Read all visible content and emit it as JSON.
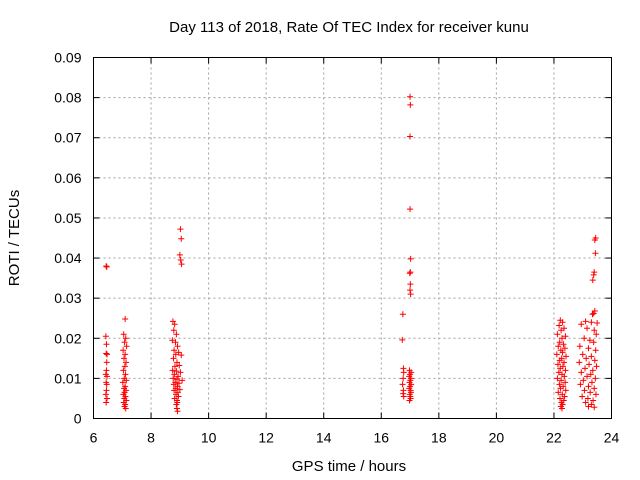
{
  "chart_data": {
    "type": "scatter",
    "title": "Day 113 of 2018, Rate Of TEC Index for receiver kunu",
    "xlabel": "GPS time / hours",
    "ylabel": "ROTI / TECUs",
    "xlim": [
      6,
      24
    ],
    "ylim": [
      0,
      0.09
    ],
    "grid": true,
    "marker": "plus",
    "color": "#ff0000",
    "x_ticks": [
      6,
      8,
      10,
      12,
      14,
      16,
      18,
      20,
      22,
      24
    ],
    "x_tick_labels": [
      "6",
      "8",
      "10",
      "12",
      "14",
      "16",
      "18",
      "20",
      "22",
      "24"
    ],
    "y_ticks": [
      0,
      0.01,
      0.02,
      0.03,
      0.04,
      0.05,
      0.06,
      0.07,
      0.08,
      0.09
    ],
    "y_tick_labels": [
      "0",
      "0.01",
      "0.02",
      "0.03",
      "0.04",
      "0.05",
      "0.06",
      "0.07",
      "0.08",
      "0.09"
    ],
    "series": [
      {
        "name": "ROTI",
        "points": [
          [
            6.44,
            0.038
          ],
          [
            6.46,
            0.0378
          ],
          [
            6.43,
            0.0205
          ],
          [
            6.45,
            0.0185
          ],
          [
            6.47,
            0.016
          ],
          [
            6.44,
            0.0162
          ],
          [
            6.46,
            0.014
          ],
          [
            6.45,
            0.012
          ],
          [
            6.43,
            0.011
          ],
          [
            6.47,
            0.0105
          ],
          [
            6.44,
            0.009
          ],
          [
            6.46,
            0.0085
          ],
          [
            6.45,
            0.007
          ],
          [
            6.43,
            0.006
          ],
          [
            6.47,
            0.005
          ],
          [
            6.44,
            0.004
          ],
          [
            7.1,
            0.0248
          ],
          [
            7.05,
            0.021
          ],
          [
            7.12,
            0.02
          ],
          [
            7.08,
            0.019
          ],
          [
            7.15,
            0.018
          ],
          [
            7.03,
            0.017
          ],
          [
            7.1,
            0.016
          ],
          [
            7.06,
            0.015
          ],
          [
            7.13,
            0.014
          ],
          [
            7.09,
            0.013
          ],
          [
            7.04,
            0.012
          ],
          [
            7.11,
            0.011
          ],
          [
            7.07,
            0.01
          ],
          [
            7.14,
            0.0095
          ],
          [
            7.02,
            0.009
          ],
          [
            7.1,
            0.008
          ],
          [
            7.06,
            0.0075
          ],
          [
            7.13,
            0.007
          ],
          [
            7.08,
            0.0065
          ],
          [
            7.04,
            0.006
          ],
          [
            7.11,
            0.0055
          ],
          [
            7.07,
            0.005
          ],
          [
            7.14,
            0.0045
          ],
          [
            7.05,
            0.004
          ],
          [
            7.1,
            0.0035
          ],
          [
            7.08,
            0.003
          ],
          [
            7.12,
            0.0025
          ],
          [
            9.02,
            0.0472
          ],
          [
            9.05,
            0.0448
          ],
          [
            9.0,
            0.0408
          ],
          [
            9.03,
            0.0395
          ],
          [
            9.06,
            0.0385
          ],
          [
            8.76,
            0.0242
          ],
          [
            8.82,
            0.0235
          ],
          [
            8.79,
            0.022
          ],
          [
            8.88,
            0.021
          ],
          [
            8.74,
            0.0195
          ],
          [
            8.85,
            0.019
          ],
          [
            8.92,
            0.018
          ],
          [
            8.8,
            0.017
          ],
          [
            8.96,
            0.0165
          ],
          [
            8.86,
            0.016
          ],
          [
            8.78,
            0.015
          ],
          [
            9.05,
            0.0158
          ],
          [
            8.9,
            0.014
          ],
          [
            8.83,
            0.013
          ],
          [
            8.98,
            0.0132
          ],
          [
            8.75,
            0.012
          ],
          [
            8.88,
            0.0118
          ],
          [
            9.02,
            0.0115
          ],
          [
            8.81,
            0.011
          ],
          [
            8.94,
            0.0105
          ],
          [
            8.77,
            0.01
          ],
          [
            8.9,
            0.0098
          ],
          [
            9.08,
            0.0095
          ],
          [
            8.84,
            0.009
          ],
          [
            8.97,
            0.0088
          ],
          [
            8.79,
            0.0085
          ],
          [
            8.92,
            0.008
          ],
          [
            8.86,
            0.0075
          ],
          [
            9.0,
            0.0072
          ],
          [
            8.8,
            0.007
          ],
          [
            8.93,
            0.0065
          ],
          [
            8.87,
            0.006
          ],
          [
            8.95,
            0.0055
          ],
          [
            8.82,
            0.005
          ],
          [
            8.9,
            0.0045
          ],
          [
            8.91,
            0.004
          ],
          [
            8.88,
            0.0035
          ],
          [
            8.9,
            0.0025
          ],
          [
            8.92,
            0.0018
          ],
          [
            17.0,
            0.0802
          ],
          [
            17.01,
            0.0782
          ],
          [
            17.0,
            0.0703
          ],
          [
            17.0,
            0.0522
          ],
          [
            17.02,
            0.0398
          ],
          [
            17.01,
            0.0365
          ],
          [
            16.99,
            0.0362
          ],
          [
            17.01,
            0.0335
          ],
          [
            17.0,
            0.032
          ],
          [
            17.02,
            0.031
          ],
          [
            16.75,
            0.026
          ],
          [
            16.73,
            0.0196
          ],
          [
            16.77,
            0.0125
          ],
          [
            16.78,
            0.0115
          ],
          [
            16.76,
            0.01
          ],
          [
            16.74,
            0.0085
          ],
          [
            16.77,
            0.007
          ],
          [
            16.76,
            0.0062
          ],
          [
            16.78,
            0.0055
          ],
          [
            16.98,
            0.012
          ],
          [
            17.04,
            0.0115
          ],
          [
            17.0,
            0.011
          ],
          [
            16.97,
            0.0105
          ],
          [
            17.03,
            0.01
          ],
          [
            17.01,
            0.0095
          ],
          [
            16.98,
            0.009
          ],
          [
            17.04,
            0.0085
          ],
          [
            17.0,
            0.008
          ],
          [
            16.97,
            0.0075
          ],
          [
            17.02,
            0.007
          ],
          [
            17.03,
            0.0065
          ],
          [
            16.99,
            0.006
          ],
          [
            17.01,
            0.0055
          ],
          [
            17.02,
            0.005
          ],
          [
            16.98,
            0.0045
          ],
          [
            22.22,
            0.0245
          ],
          [
            22.3,
            0.024
          ],
          [
            22.18,
            0.0232
          ],
          [
            22.35,
            0.0225
          ],
          [
            22.25,
            0.022
          ],
          [
            22.12,
            0.021
          ],
          [
            22.4,
            0.0205
          ],
          [
            22.28,
            0.02
          ],
          [
            22.2,
            0.019
          ],
          [
            22.33,
            0.0185
          ],
          [
            22.15,
            0.018
          ],
          [
            22.38,
            0.0175
          ],
          [
            22.24,
            0.017
          ],
          [
            22.3,
            0.0165
          ],
          [
            22.1,
            0.016
          ],
          [
            22.42,
            0.0155
          ],
          [
            22.27,
            0.015
          ],
          [
            22.2,
            0.0145
          ],
          [
            22.35,
            0.014
          ],
          [
            22.14,
            0.0135
          ],
          [
            22.31,
            0.013
          ],
          [
            22.22,
            0.0125
          ],
          [
            22.4,
            0.012
          ],
          [
            22.17,
            0.0115
          ],
          [
            22.28,
            0.011
          ],
          [
            22.36,
            0.0105
          ],
          [
            22.12,
            0.01
          ],
          [
            22.25,
            0.0095
          ],
          [
            22.39,
            0.009
          ],
          [
            22.19,
            0.0085
          ],
          [
            22.32,
            0.008
          ],
          [
            22.23,
            0.0075
          ],
          [
            22.41,
            0.007
          ],
          [
            22.15,
            0.0065
          ],
          [
            22.29,
            0.006
          ],
          [
            22.37,
            0.0055
          ],
          [
            22.21,
            0.005
          ],
          [
            22.34,
            0.0045
          ],
          [
            22.26,
            0.004
          ],
          [
            22.3,
            0.0035
          ],
          [
            22.24,
            0.003
          ],
          [
            22.28,
            0.0025
          ],
          [
            23.45,
            0.045
          ],
          [
            23.42,
            0.0445
          ],
          [
            23.44,
            0.0412
          ],
          [
            23.4,
            0.0365
          ],
          [
            23.38,
            0.0358
          ],
          [
            23.35,
            0.0345
          ],
          [
            23.42,
            0.0268
          ],
          [
            23.34,
            0.026
          ],
          [
            23.38,
            0.0262
          ],
          [
            23.1,
            0.0242
          ],
          [
            23.3,
            0.024
          ],
          [
            23.5,
            0.0238
          ],
          [
            22.95,
            0.0235
          ],
          [
            23.15,
            0.0225
          ],
          [
            23.4,
            0.022
          ],
          [
            23.47,
            0.021
          ],
          [
            23.05,
            0.02
          ],
          [
            23.25,
            0.0195
          ],
          [
            23.38,
            0.019
          ],
          [
            22.9,
            0.018
          ],
          [
            23.2,
            0.0175
          ],
          [
            23.45,
            0.017
          ],
          [
            23.0,
            0.016
          ],
          [
            23.3,
            0.0155
          ],
          [
            23.12,
            0.015
          ],
          [
            23.42,
            0.0145
          ],
          [
            22.88,
            0.014
          ],
          [
            23.22,
            0.0135
          ],
          [
            23.48,
            0.013
          ],
          [
            23.08,
            0.0125
          ],
          [
            23.35,
            0.012
          ],
          [
            22.95,
            0.0115
          ],
          [
            23.28,
            0.011
          ],
          [
            23.15,
            0.0105
          ],
          [
            23.44,
            0.01
          ],
          [
            23.02,
            0.0095
          ],
          [
            23.32,
            0.009
          ],
          [
            22.92,
            0.0085
          ],
          [
            23.2,
            0.008
          ],
          [
            23.4,
            0.0075
          ],
          [
            23.06,
            0.007
          ],
          [
            23.26,
            0.0065
          ],
          [
            23.46,
            0.006
          ],
          [
            22.98,
            0.0055
          ],
          [
            23.18,
            0.005
          ],
          [
            23.36,
            0.0045
          ],
          [
            23.1,
            0.004
          ],
          [
            23.3,
            0.0035
          ],
          [
            23.2,
            0.003
          ],
          [
            23.4,
            0.0028
          ]
        ]
      }
    ]
  }
}
